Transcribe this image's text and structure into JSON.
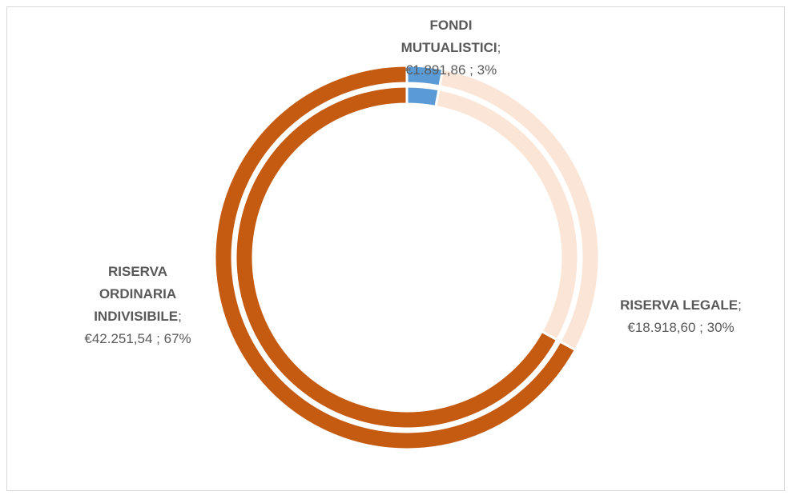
{
  "chart_data": {
    "type": "donut",
    "categories": [
      "FONDI MUTUALISTICI",
      "RISERVA LEGALE",
      "RISERVA ORDINARIA INDIVISIBILE"
    ],
    "values": [
      1891.86,
      18918.6,
      42251.54
    ],
    "value_labels": [
      "€1.891,86 ; 3%",
      "€18.918,60 ; 30%",
      "€42.251,54 ; 67%"
    ],
    "label_separator": ";",
    "colors": [
      "#5b9bd5",
      "#fbe5d6",
      "#c55a11"
    ]
  }
}
